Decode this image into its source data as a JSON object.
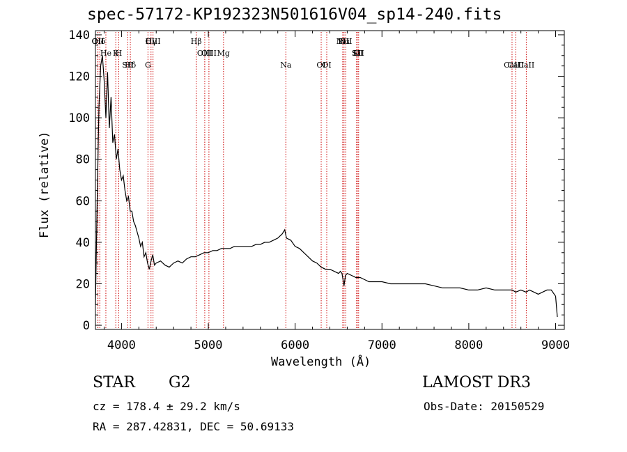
{
  "chart_data": {
    "type": "line",
    "title": "spec-57172-KP192323N501616V04_sp14-240.fits",
    "xlabel": "Wavelength (Å)",
    "ylabel": "Flux (relative)",
    "xlim": [
      3700,
      9100
    ],
    "ylim": [
      -2,
      142
    ],
    "x_ticks": [
      4000,
      5000,
      6000,
      7000,
      8000,
      9000
    ],
    "y_ticks": [
      0,
      20,
      40,
      60,
      80,
      100,
      120,
      140
    ],
    "series": [
      {
        "name": "flux",
        "color": "#000000",
        "x": [
          3700,
          3720,
          3740,
          3760,
          3780,
          3800,
          3820,
          3840,
          3860,
          3880,
          3900,
          3920,
          3940,
          3960,
          3980,
          4000,
          4020,
          4040,
          4060,
          4080,
          4100,
          4120,
          4140,
          4160,
          4180,
          4200,
          4220,
          4240,
          4260,
          4280,
          4300,
          4320,
          4340,
          4360,
          4380,
          4400,
          4450,
          4500,
          4550,
          4600,
          4650,
          4700,
          4750,
          4800,
          4850,
          4900,
          4950,
          5000,
          5050,
          5100,
          5150,
          5200,
          5250,
          5300,
          5350,
          5400,
          5450,
          5500,
          5550,
          5600,
          5650,
          5700,
          5750,
          5800,
          5850,
          5880,
          5900,
          5950,
          6000,
          6050,
          6100,
          6150,
          6200,
          6250,
          6300,
          6350,
          6400,
          6450,
          6500,
          6520,
          6540,
          6563,
          6580,
          6600,
          6650,
          6700,
          6750,
          6800,
          6850,
          6900,
          6950,
          7000,
          7100,
          7200,
          7300,
          7400,
          7500,
          7600,
          7700,
          7800,
          7900,
          8000,
          8100,
          8200,
          8300,
          8400,
          8450,
          8500,
          8540,
          8600,
          8660,
          8700,
          8750,
          8800,
          8850,
          8900,
          8950,
          9000,
          9020
        ],
        "y": [
          10,
          60,
          105,
          125,
          130,
          118,
          100,
          122,
          95,
          110,
          88,
          92,
          80,
          85,
          75,
          70,
          72,
          65,
          60,
          62,
          55,
          55,
          50,
          48,
          45,
          42,
          38,
          40,
          33,
          35,
          30,
          27,
          31,
          34,
          29,
          30,
          31,
          29,
          28,
          30,
          31,
          30,
          32,
          33,
          33,
          34,
          35,
          35,
          36,
          36,
          37,
          37,
          37,
          38,
          38,
          38,
          38,
          38,
          39,
          39,
          40,
          40,
          41,
          42,
          44,
          46,
          42,
          41,
          38,
          37,
          35,
          33,
          31,
          30,
          28,
          27,
          27,
          26,
          25,
          26,
          25,
          19,
          24,
          25,
          24,
          23,
          23,
          22,
          21,
          21,
          21,
          21,
          20,
          20,
          20,
          20,
          20,
          19,
          18,
          18,
          18,
          17,
          17,
          18,
          17,
          17,
          17,
          17,
          16,
          17,
          16,
          17,
          16,
          15,
          16,
          17,
          17,
          14,
          4
        ]
      }
    ],
    "line_markers": [
      {
        "label": "Hδ",
        "x": 3750
      },
      {
        "label": "K",
        "x": 3934
      },
      {
        "label": "Hδ",
        "x": 4102
      },
      {
        "label": "OIII",
        "x": 4363
      },
      {
        "label": "OIII",
        "x": 5007
      },
      {
        "label": "OI",
        "x": 6300
      },
      {
        "label": "Hα",
        "x": 6563
      },
      {
        "label": "SII",
        "x": 6716
      },
      {
        "label": "CaII",
        "x": 8542
      },
      {
        "label": "OII",
        "x": 3727
      },
      {
        "label": "He",
        "x": 3820
      },
      {
        "label": "SII",
        "x": 4072
      },
      {
        "label": "Hγ",
        "x": 4340
      },
      {
        "label": "OIII",
        "x": 4959
      },
      {
        "label": "Na",
        "x": 5893
      },
      {
        "label": "NII",
        "x": 6548
      },
      {
        "label": "Li",
        "x": 6708
      },
      {
        "label": "CaII",
        "x": 8498
      },
      {
        "label": "OII",
        "x": 3729
      },
      {
        "label": "H",
        "x": 3968
      },
      {
        "label": "G",
        "x": 4305
      },
      {
        "label": "Hβ",
        "x": 4861
      },
      {
        "label": "Mg",
        "x": 5175
      },
      {
        "label": "OI",
        "x": 6364
      },
      {
        "label": "NII",
        "x": 6583
      },
      {
        "label": "SII",
        "x": 6731
      },
      {
        "label": "CaII",
        "x": 8662
      }
    ]
  },
  "footer": {
    "class": "STAR",
    "subclass": "G2",
    "survey": "LAMOST DR3",
    "cz": "cz = 178.4 ± 29.2 km/s",
    "obs_date": "Obs-Date: 20150529",
    "radec": "RA = 287.42831, DEC =  50.69133"
  }
}
